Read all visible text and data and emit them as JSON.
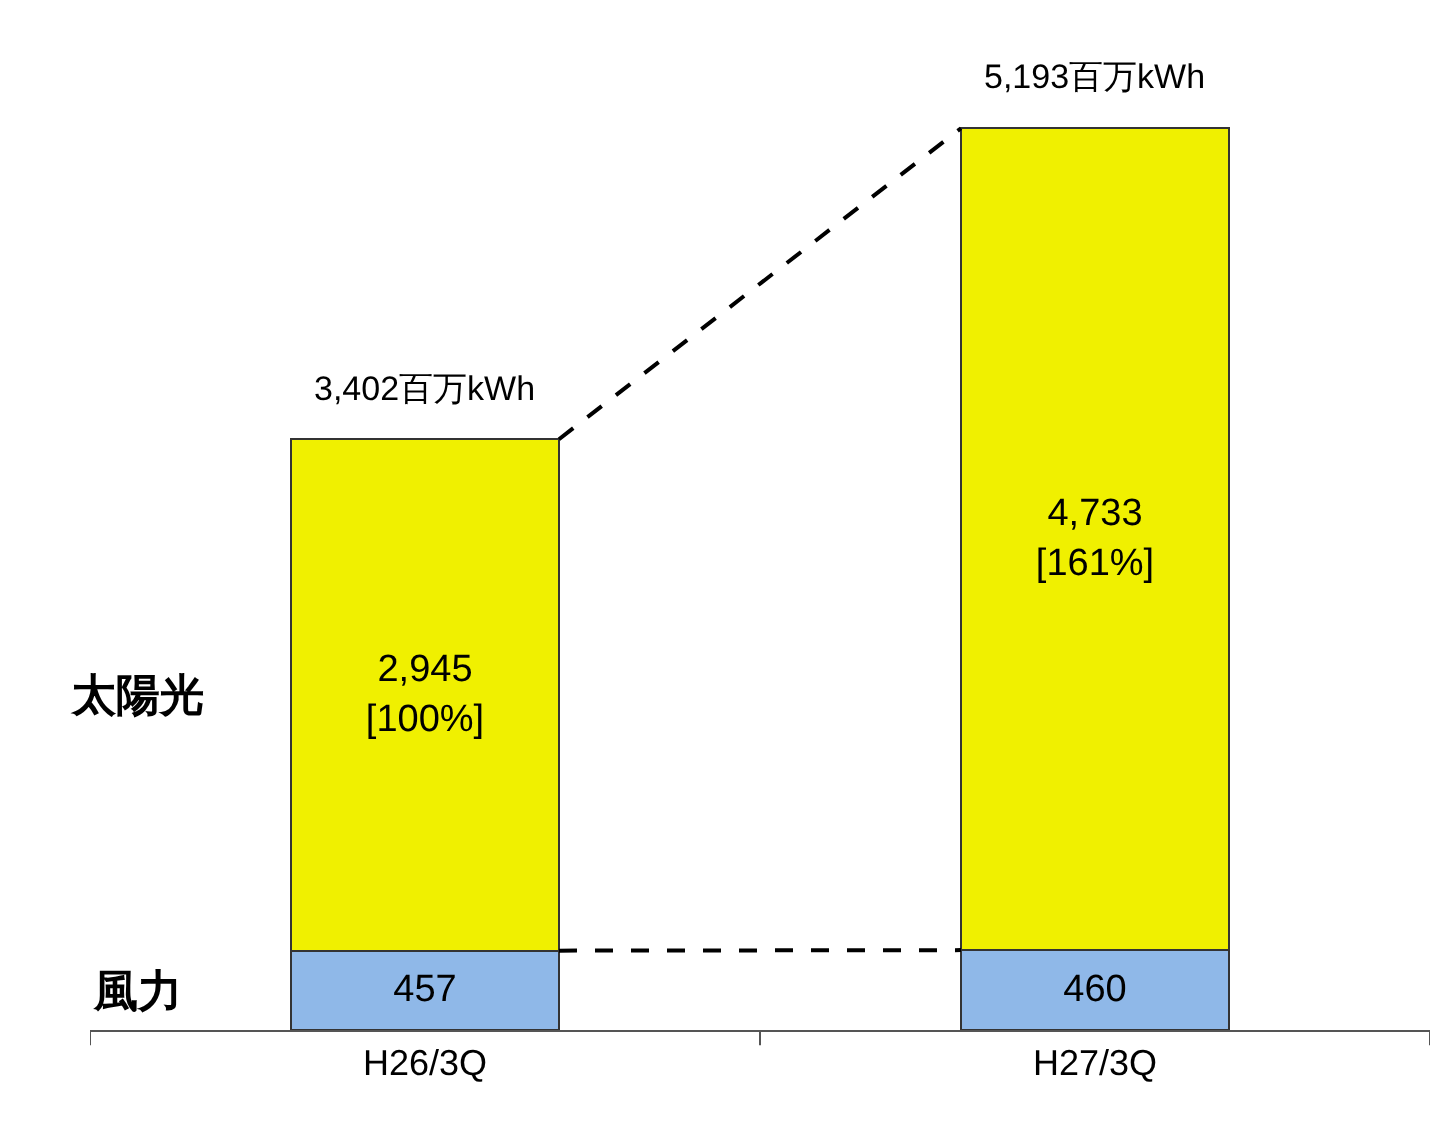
{
  "chart_data": {
    "type": "bar",
    "stacked": true,
    "categories": [
      "H26/3Q",
      "H27/3Q"
    ],
    "series": [
      {
        "name": "風力",
        "color": "#8fb8e8",
        "values": [
          457,
          460
        ],
        "value_labels": [
          "457",
          "460"
        ]
      },
      {
        "name": "太陽光",
        "color": "#f0f000",
        "values": [
          2945,
          4733
        ],
        "value_labels": [
          "2,945\n[100%]",
          "4,733\n[161%]"
        ]
      }
    ],
    "totals": [
      "3,402百万kWh",
      "5,193百万kWh"
    ],
    "tick_labels": "x",
    "legend": false
  }
}
